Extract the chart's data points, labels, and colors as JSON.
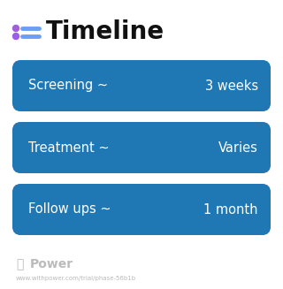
{
  "title": "Timeline",
  "title_fontsize": 20,
  "title_fontweight": "bold",
  "title_color": "#111111",
  "icon_color_dot": "#9b5fe0",
  "icon_color_line": "#6a9ff5",
  "background_color": "#ffffff",
  "rows": [
    {
      "label": "Screening ~",
      "value": "3 weeks",
      "color_left": "#4d9ef5",
      "color_right": "#4488f0"
    },
    {
      "label": "Treatment ~",
      "value": "Varies",
      "color_left": "#6e7de8",
      "color_right": "#b06ad4"
    },
    {
      "label": "Follow ups ~",
      "value": "1 month",
      "color_left": "#9b6bd4",
      "color_right": "#c46abe"
    }
  ],
  "footer_logo_text": "Power",
  "footer_url": "www.withpower.com/trial/phase-56b1b",
  "footer_color": "#bbbbbb",
  "label_fontsize": 10.5,
  "value_fontsize": 10.5,
  "text_color": "#ffffff"
}
